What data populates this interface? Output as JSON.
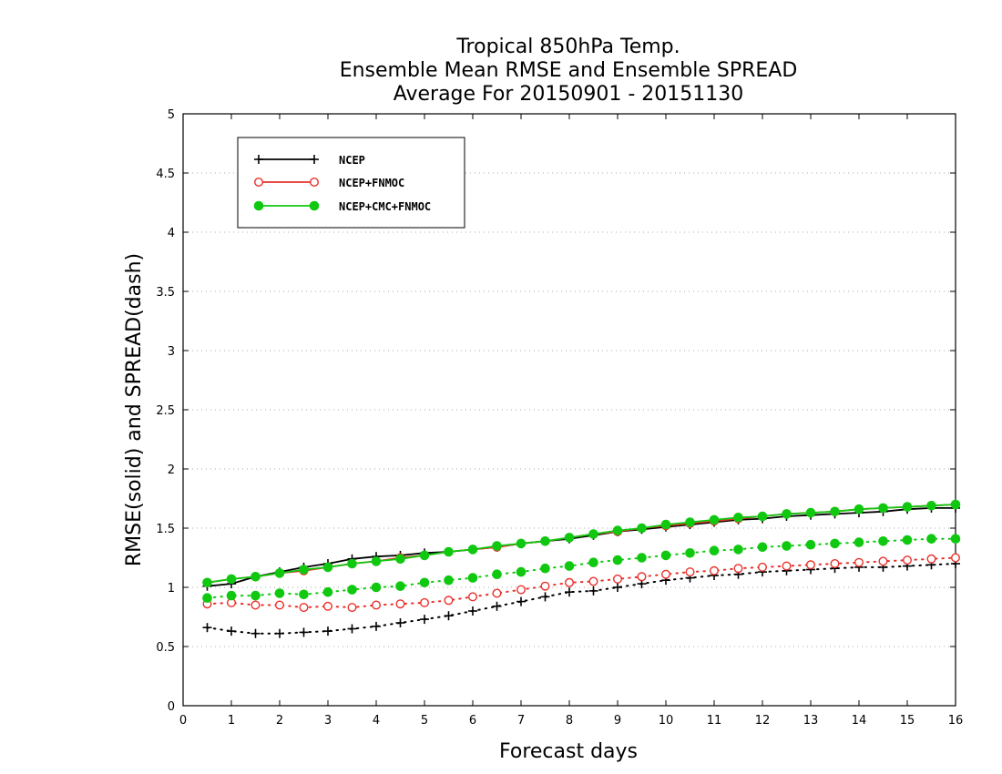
{
  "chart_data": {
    "type": "line",
    "title_lines": [
      "Tropical 850hPa Temp.",
      "Ensemble Mean RMSE and Ensemble SPREAD",
      "Average For 20150901 - 20151130"
    ],
    "xlabel": "Forecast days",
    "ylabel": "RMSE(solid) and SPREAD(dash)",
    "xlim": [
      0,
      16
    ],
    "ylim": [
      0,
      5
    ],
    "x_ticks": [
      0,
      1,
      2,
      3,
      4,
      5,
      6,
      7,
      8,
      9,
      10,
      11,
      12,
      13,
      14,
      15,
      16
    ],
    "y_ticks": [
      0,
      0.5,
      1,
      1.5,
      2,
      2.5,
      3,
      3.5,
      4,
      4.5,
      5
    ],
    "y_tick_labels": [
      "0",
      "0.5",
      "1",
      "1.5",
      "2",
      "2.5",
      "3",
      "3.5",
      "4",
      "4.5",
      "5"
    ],
    "grid": "horizontal dotted",
    "legend_position": "top-left",
    "x": [
      0.5,
      1,
      1.5,
      2,
      2.5,
      3,
      3.5,
      4,
      4.5,
      5,
      5.5,
      6,
      6.5,
      7,
      7.5,
      8,
      8.5,
      9,
      9.5,
      10,
      10.5,
      11,
      11.5,
      12,
      12.5,
      13,
      13.5,
      14,
      14.5,
      15,
      15.5,
      16
    ],
    "series": [
      {
        "name": "NCEP",
        "color": "#000000",
        "marker": "plus",
        "rmse": [
          1.01,
          1.03,
          1.09,
          1.13,
          1.17,
          1.2,
          1.24,
          1.26,
          1.27,
          1.29,
          1.3,
          1.32,
          1.34,
          1.37,
          1.39,
          1.41,
          1.44,
          1.47,
          1.49,
          1.51,
          1.53,
          1.55,
          1.57,
          1.58,
          1.6,
          1.61,
          1.62,
          1.63,
          1.64,
          1.66,
          1.67,
          1.67
        ],
        "spread": [
          0.66,
          0.63,
          0.61,
          0.61,
          0.62,
          0.63,
          0.65,
          0.67,
          0.7,
          0.73,
          0.76,
          0.8,
          0.84,
          0.88,
          0.92,
          0.96,
          0.97,
          1.0,
          1.03,
          1.06,
          1.08,
          1.1,
          1.11,
          1.13,
          1.14,
          1.15,
          1.16,
          1.17,
          1.17,
          1.18,
          1.19,
          1.2
        ]
      },
      {
        "name": "NCEP+FNMOC",
        "color": "#e8302a",
        "marker": "open-circle",
        "rmse": [
          1.04,
          1.07,
          1.09,
          1.12,
          1.14,
          1.17,
          1.2,
          1.22,
          1.25,
          1.27,
          1.3,
          1.32,
          1.34,
          1.37,
          1.39,
          1.42,
          1.45,
          1.47,
          1.5,
          1.52,
          1.54,
          1.56,
          1.58,
          1.6,
          1.62,
          1.63,
          1.64,
          1.66,
          1.67,
          1.68,
          1.69,
          1.7
        ],
        "spread": [
          0.86,
          0.87,
          0.85,
          0.85,
          0.83,
          0.84,
          0.83,
          0.85,
          0.86,
          0.87,
          0.89,
          0.92,
          0.95,
          0.98,
          1.01,
          1.04,
          1.05,
          1.07,
          1.09,
          1.11,
          1.13,
          1.14,
          1.16,
          1.17,
          1.18,
          1.19,
          1.2,
          1.21,
          1.22,
          1.23,
          1.24,
          1.25
        ]
      },
      {
        "name": "NCEP+CMC+FNMOC",
        "color": "#10c810",
        "marker": "filled-circle",
        "rmse": [
          1.04,
          1.07,
          1.09,
          1.12,
          1.15,
          1.17,
          1.2,
          1.22,
          1.24,
          1.27,
          1.3,
          1.32,
          1.35,
          1.37,
          1.39,
          1.42,
          1.45,
          1.48,
          1.5,
          1.53,
          1.55,
          1.57,
          1.59,
          1.6,
          1.62,
          1.63,
          1.64,
          1.66,
          1.67,
          1.68,
          1.69,
          1.7
        ],
        "spread": [
          0.91,
          0.93,
          0.93,
          0.95,
          0.94,
          0.96,
          0.98,
          1.0,
          1.01,
          1.04,
          1.06,
          1.08,
          1.11,
          1.13,
          1.16,
          1.18,
          1.21,
          1.23,
          1.25,
          1.27,
          1.29,
          1.31,
          1.32,
          1.34,
          1.35,
          1.36,
          1.37,
          1.38,
          1.39,
          1.4,
          1.41,
          1.41
        ]
      }
    ]
  }
}
